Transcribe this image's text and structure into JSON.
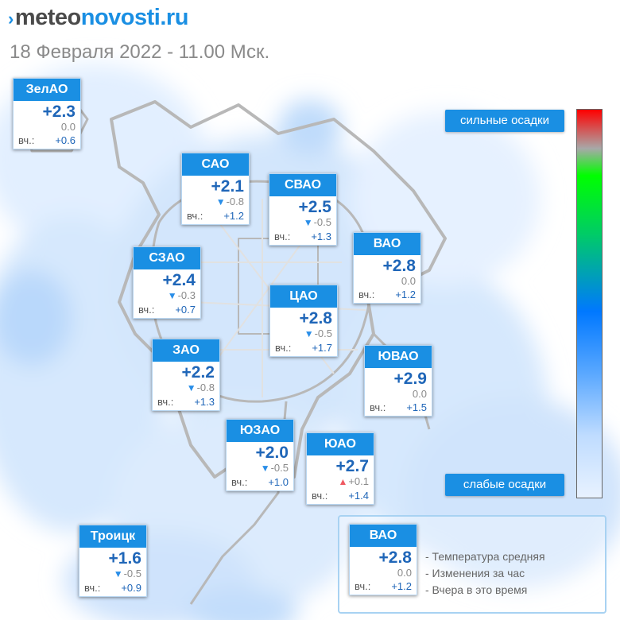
{
  "header": {
    "logo_part1": "meteo",
    "logo_part2": "novosti.ru",
    "date": "18 Февраля 2022 - 11.00 Мск."
  },
  "colors": {
    "accent": "#1a8fe3",
    "temp_text": "#1f66b8",
    "arrow_down": "#2a8ee8",
    "arrow_up": "#ef5a62"
  },
  "districts": [
    {
      "name": "ЗелАО",
      "temp": "+2.3",
      "arrow": "none",
      "change": "0.0",
      "yesterday_label": "вч.:",
      "yesterday": "+0.6"
    },
    {
      "name": "САО",
      "temp": "+2.1",
      "arrow": "down",
      "change": "-0.8",
      "yesterday_label": "вч.:",
      "yesterday": "+1.2"
    },
    {
      "name": "СВАО",
      "temp": "+2.5",
      "arrow": "down",
      "change": "-0.5",
      "yesterday_label": "вч.:",
      "yesterday": "+1.3"
    },
    {
      "name": "СЗАО",
      "temp": "+2.4",
      "arrow": "down",
      "change": "-0.3",
      "yesterday_label": "вч.:",
      "yesterday": "+0.7"
    },
    {
      "name": "ВАО",
      "temp": "+2.8",
      "arrow": "none",
      "change": "0.0",
      "yesterday_label": "вч.:",
      "yesterday": "+1.2"
    },
    {
      "name": "ЦАО",
      "temp": "+2.8",
      "arrow": "down",
      "change": "-0.5",
      "yesterday_label": "вч.:",
      "yesterday": "+1.7"
    },
    {
      "name": "ЗАО",
      "temp": "+2.2",
      "arrow": "down",
      "change": "-0.8",
      "yesterday_label": "вч.:",
      "yesterday": "+1.3"
    },
    {
      "name": "ЮВАО",
      "temp": "+2.9",
      "arrow": "none",
      "change": "0.0",
      "yesterday_label": "вч.:",
      "yesterday": "+1.5"
    },
    {
      "name": "ЮЗАО",
      "temp": "+2.0",
      "arrow": "down",
      "change": "-0.5",
      "yesterday_label": "вч.:",
      "yesterday": "+1.0"
    },
    {
      "name": "ЮАО",
      "temp": "+2.7",
      "arrow": "up",
      "change": "+0.1",
      "yesterday_label": "вч.:",
      "yesterday": "+1.4"
    },
    {
      "name": "Троицк",
      "temp": "+1.6",
      "arrow": "down",
      "change": "-0.5",
      "yesterday_label": "вч.:",
      "yesterday": "+0.9"
    }
  ],
  "precip_scale": {
    "top_label": "сильные осадки",
    "bottom_label": "слабые осадки"
  },
  "legend": {
    "sample": {
      "name": "ВАО",
      "temp": "+2.8",
      "arrow": "none",
      "change": "0.0",
      "yesterday_label": "вч.:",
      "yesterday": "+1.2"
    },
    "line1": "- Температура средняя",
    "line2": "- Изменения за час",
    "line3": "- Вчера в это время"
  }
}
